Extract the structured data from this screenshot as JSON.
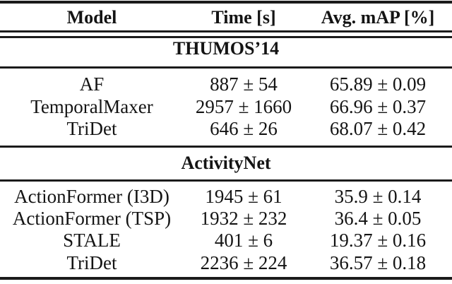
{
  "table": {
    "headers": [
      "Model",
      "Time [s]",
      "Avg. mAP [%]"
    ],
    "sections": [
      {
        "title": "THUMOS’14",
        "rows": [
          [
            "AF",
            "887 ± 54",
            "65.89 ± 0.09"
          ],
          [
            "TemporalMaxer",
            "2957 ± 1660",
            "66.96 ± 0.37"
          ],
          [
            "TriDet",
            "646 ± 26",
            "68.07 ± 0.42"
          ]
        ]
      },
      {
        "title": "ActivityNet",
        "rows": [
          [
            "ActionFormer (I3D)",
            "1945 ± 61",
            "35.9 ± 0.14"
          ],
          [
            "ActionFormer (TSP)",
            "1932 ± 232",
            "36.4 ± 0.05"
          ],
          [
            "STALE",
            "401 ± 6",
            "19.37 ± 0.16"
          ],
          [
            "TriDet",
            "2236 ± 224",
            "36.57 ± 0.18"
          ]
        ]
      }
    ]
  },
  "colors": {
    "text": "#141414",
    "rule": "#1b1b1b",
    "background": "#ffffff"
  }
}
